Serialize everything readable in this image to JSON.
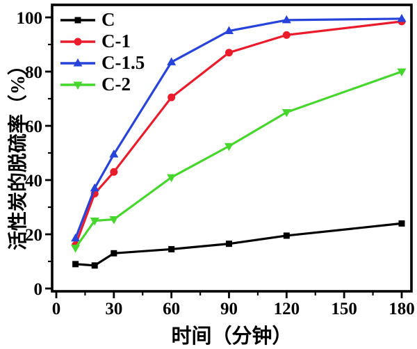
{
  "chart_data": {
    "type": "line",
    "title": "",
    "xlabel": "时间（分钟）",
    "ylabel": "活性炭的脱硫率（%）",
    "x": [
      10,
      20,
      30,
      60,
      90,
      120,
      180
    ],
    "x_ticks": [
      0,
      30,
      60,
      90,
      120,
      150,
      180
    ],
    "x_minor_ticks": [
      15,
      45,
      75,
      105,
      135,
      165
    ],
    "y_ticks": [
      0,
      20,
      40,
      60,
      80,
      100
    ],
    "y_minor_ticks": [
      10,
      30,
      50,
      70,
      90
    ],
    "xlim": [
      0,
      190
    ],
    "ylim": [
      0,
      105
    ],
    "grid": false,
    "legend_position": "top-left",
    "frame_color": "#000000",
    "series": [
      {
        "name": "C",
        "color": "#000000",
        "marker": "square",
        "values": [
          9,
          8.5,
          13,
          14.5,
          16.5,
          19.5,
          24
        ]
      },
      {
        "name": "C-1",
        "color": "#ea1c2c",
        "marker": "circle",
        "values": [
          16,
          35,
          43,
          70.5,
          87,
          93.5,
          98.5
        ]
      },
      {
        "name": "C-1.5",
        "color": "#2743d9",
        "marker": "triangle-up",
        "values": [
          18.5,
          37,
          49.5,
          83.5,
          95,
          99,
          99.5
        ]
      },
      {
        "name": "C-2",
        "color": "#47d62e",
        "marker": "triangle-down",
        "values": [
          15,
          25,
          25.5,
          41,
          52.5,
          65,
          80
        ]
      }
    ]
  }
}
